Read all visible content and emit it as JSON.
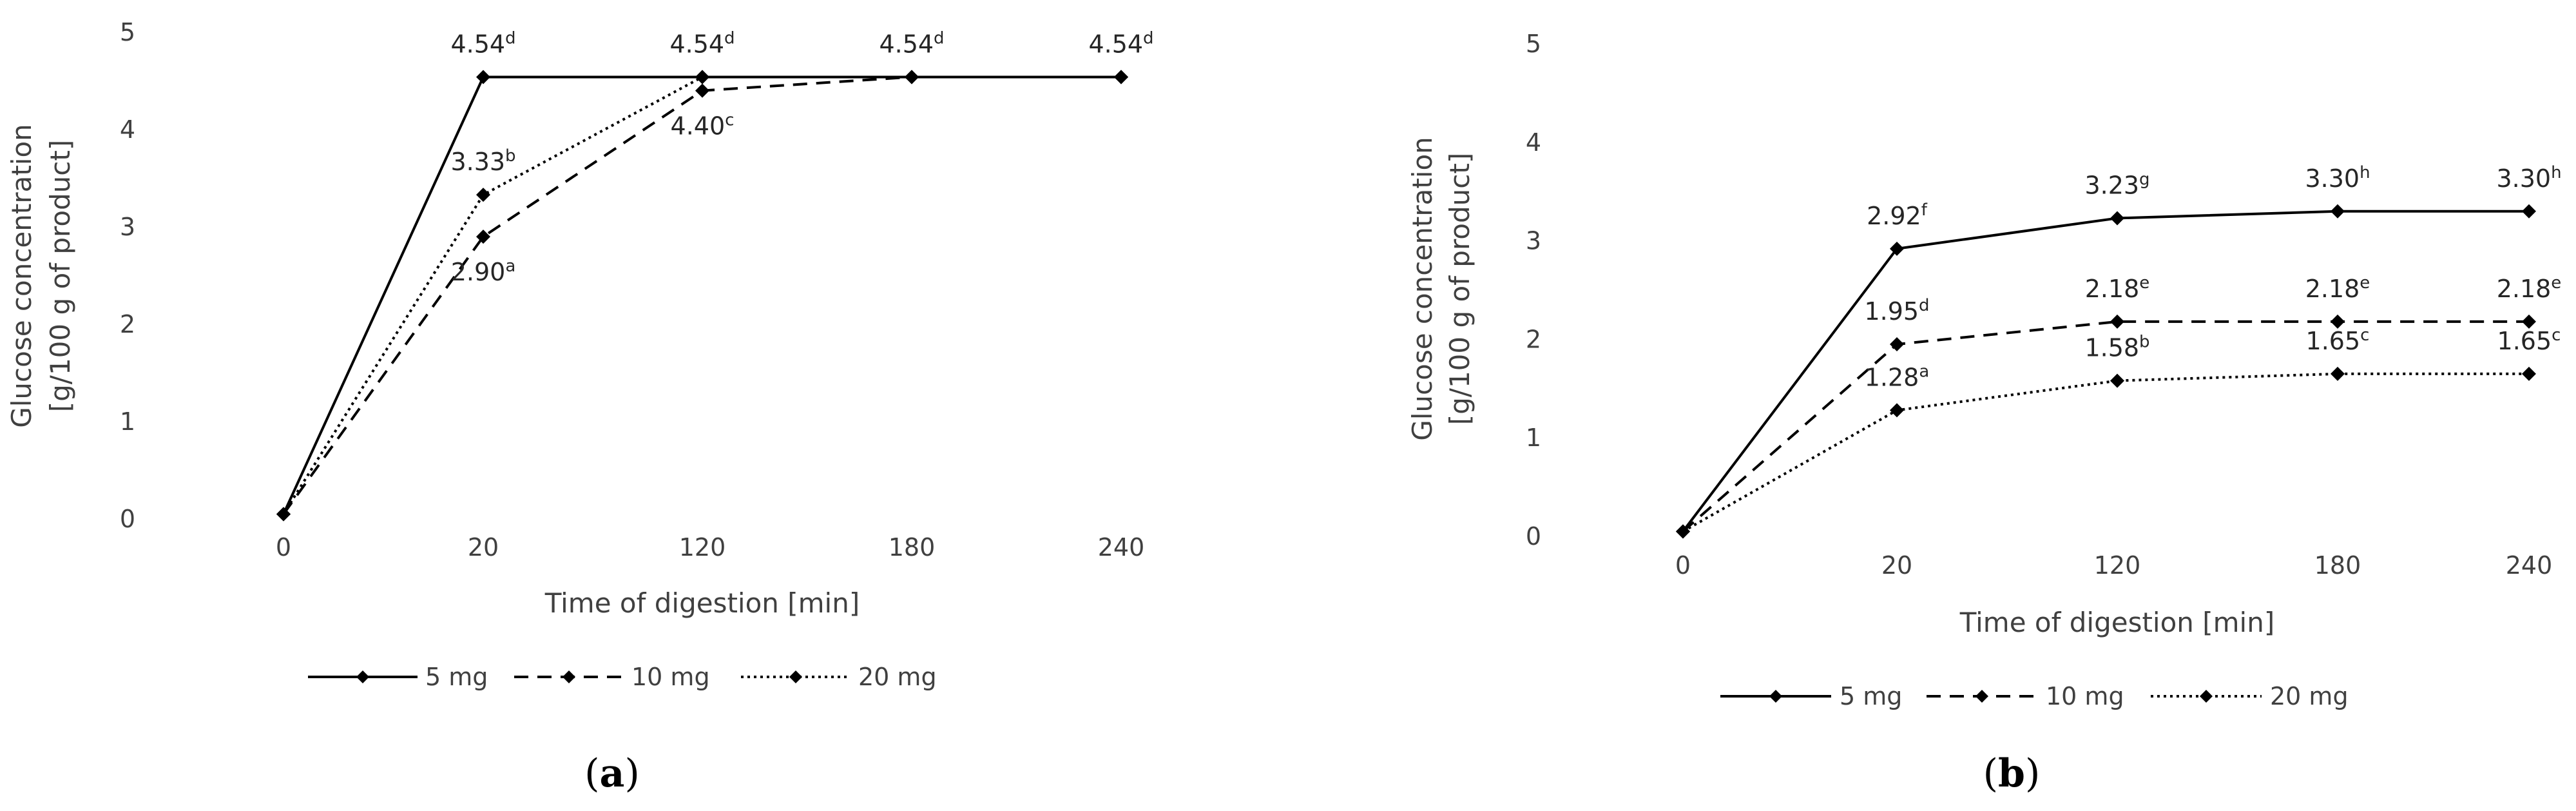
{
  "chart_data": [
    {
      "type": "line",
      "panel_label": {
        "open": "(",
        "letter": "a",
        "close": ")"
      },
      "categories": [
        "0",
        "20",
        "120",
        "180",
        "240"
      ],
      "xlabel": "Time of digestion [min]",
      "ylabel": [
        "Glucose concentration",
        "[g/100 g of product]"
      ],
      "ylim": [
        0,
        5
      ],
      "yticks": [
        "0",
        "1",
        "2",
        "3",
        "4",
        "5"
      ],
      "grid": false,
      "legend_position": "bottom",
      "series": [
        {
          "name": "5 mg",
          "style": "solid",
          "values": [
            0.05,
            4.54,
            4.54,
            4.54,
            4.54
          ]
        },
        {
          "name": "10 mg",
          "style": "dashed",
          "values": [
            0.05,
            2.9,
            4.4,
            4.54,
            4.54
          ]
        },
        {
          "name": "20 mg",
          "style": "dotted",
          "values": [
            0.05,
            3.33,
            4.54,
            4.54,
            4.54
          ]
        }
      ],
      "annotations": [
        {
          "series": 0,
          "index": 1,
          "value": "4.54",
          "sup": "d",
          "pos": "above"
        },
        {
          "series": 0,
          "index": 2,
          "value": "4.54",
          "sup": "d",
          "pos": "above"
        },
        {
          "series": 0,
          "index": 3,
          "value": "4.54",
          "sup": "d",
          "pos": "above"
        },
        {
          "series": 0,
          "index": 4,
          "value": "4.54",
          "sup": "d",
          "pos": "above"
        },
        {
          "series": 2,
          "index": 1,
          "value": "3.33",
          "sup": "b",
          "pos": "above"
        },
        {
          "series": 1,
          "index": 1,
          "value": "2.90",
          "sup": "a",
          "pos": "below"
        },
        {
          "series": 1,
          "index": 2,
          "value": "4.40",
          "sup": "c",
          "pos": "below"
        }
      ]
    },
    {
      "type": "line",
      "panel_label": {
        "open": "(",
        "letter": "b",
        "close": ")"
      },
      "categories": [
        "0",
        "20",
        "120",
        "180",
        "240"
      ],
      "xlabel": "Time of digestion [min]",
      "ylabel": [
        "Glucose concentration",
        "[g/100 g of product]"
      ],
      "ylim": [
        0,
        5
      ],
      "yticks": [
        "0",
        "1",
        "2",
        "3",
        "4",
        "5"
      ],
      "grid": false,
      "legend_position": "bottom",
      "series": [
        {
          "name": "5 mg",
          "style": "solid",
          "values": [
            0.05,
            2.92,
            3.23,
            3.3,
            3.3
          ]
        },
        {
          "name": "10 mg",
          "style": "dashed",
          "values": [
            0.05,
            1.95,
            2.18,
            2.18,
            2.18
          ]
        },
        {
          "name": "20 mg",
          "style": "dotted",
          "values": [
            0.05,
            1.28,
            1.58,
            1.65,
            1.65
          ]
        }
      ],
      "annotations": [
        {
          "series": 0,
          "index": 1,
          "value": "2.92",
          "sup": "f",
          "pos": "above"
        },
        {
          "series": 0,
          "index": 2,
          "value": "3.23",
          "sup": "g",
          "pos": "above"
        },
        {
          "series": 0,
          "index": 3,
          "value": "3.30",
          "sup": "h",
          "pos": "above"
        },
        {
          "series": 0,
          "index": 4,
          "value": "3.30",
          "sup": "h",
          "pos": "above"
        },
        {
          "series": 1,
          "index": 1,
          "value": "1.95",
          "sup": "d",
          "pos": "above"
        },
        {
          "series": 1,
          "index": 2,
          "value": "2.18",
          "sup": "e",
          "pos": "above"
        },
        {
          "series": 1,
          "index": 3,
          "value": "2.18",
          "sup": "e",
          "pos": "above"
        },
        {
          "series": 1,
          "index": 4,
          "value": "2.18",
          "sup": "e",
          "pos": "above"
        },
        {
          "series": 2,
          "index": 1,
          "value": "1.28",
          "sup": "a",
          "pos": "above"
        },
        {
          "series": 2,
          "index": 2,
          "value": "1.58",
          "sup": "b",
          "pos": "above"
        },
        {
          "series": 2,
          "index": 3,
          "value": "1.65",
          "sup": "c",
          "pos": "above"
        },
        {
          "series": 2,
          "index": 4,
          "value": "1.65",
          "sup": "c",
          "pos": "above"
        }
      ]
    }
  ]
}
